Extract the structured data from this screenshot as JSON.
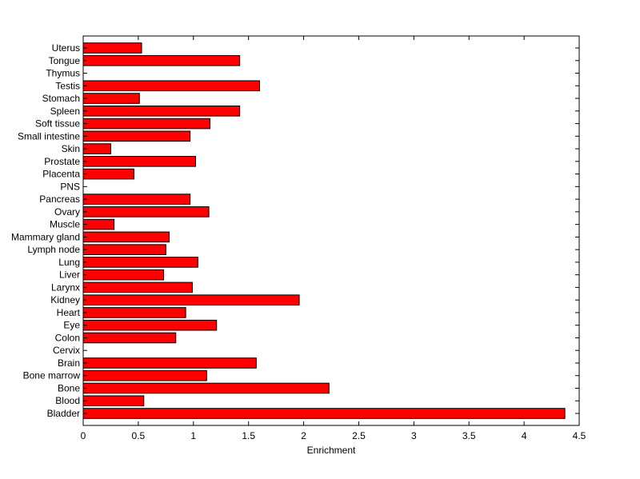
{
  "chart_data": {
    "type": "bar",
    "orientation": "horizontal",
    "categories": [
      "Uterus",
      "Tongue",
      "Thymus",
      "Testis",
      "Stomach",
      "Spleen",
      "Soft tissue",
      "Small intestine",
      "Skin",
      "Prostate",
      "Placenta",
      "PNS",
      "Pancreas",
      "Ovary",
      "Muscle",
      "Mammary gland",
      "Lymph node",
      "Lung",
      "Liver",
      "Larynx",
      "Kidney",
      "Heart",
      "Eye",
      "Colon",
      "Cervix",
      "Brain",
      "Bone marrow",
      "Bone",
      "Blood",
      "Bladder"
    ],
    "values": [
      0.53,
      1.42,
      0,
      1.6,
      0.51,
      1.42,
      1.15,
      0.97,
      0.25,
      1.02,
      0.46,
      0,
      0.97,
      1.14,
      0.28,
      0.78,
      0.75,
      1.04,
      0.73,
      0.99,
      1.96,
      0.93,
      1.21,
      0.84,
      0,
      1.57,
      1.12,
      2.23,
      0.55,
      4.37
    ],
    "xlabel": "Enrichment",
    "ylabel": "",
    "title": "",
    "xlim": [
      0,
      4.5
    ],
    "xticks": [
      "0",
      "0.5",
      "1",
      "1.5",
      "2",
      "2.5",
      "3",
      "3.5",
      "4",
      "4.5"
    ],
    "bar_color": "#ff0000",
    "bar_edge_color": "#000000",
    "grid": false
  }
}
